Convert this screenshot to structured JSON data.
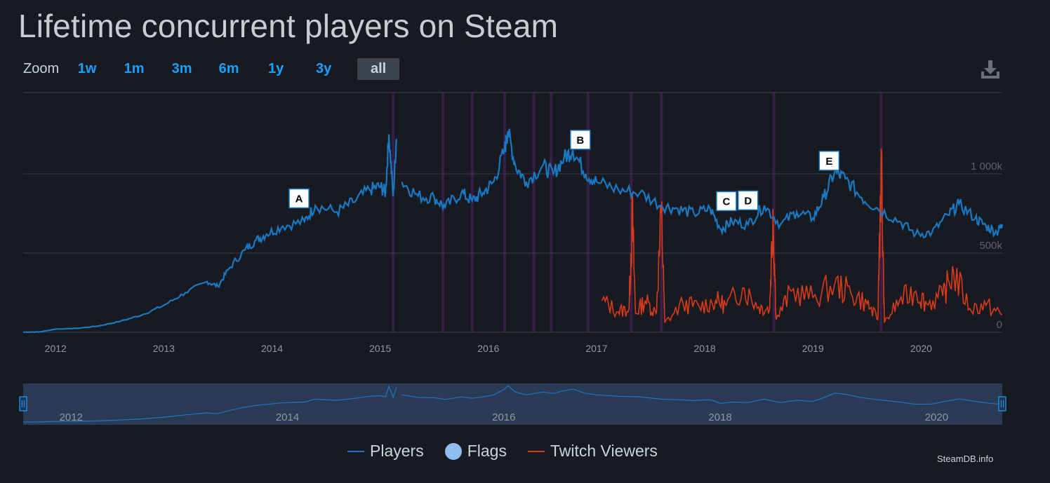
{
  "title": "Lifetime concurrent players on Steam",
  "zoom": {
    "label": "Zoom",
    "buttons": [
      "1w",
      "1m",
      "3m",
      "6m",
      "1y",
      "3y",
      "all"
    ],
    "active": "all"
  },
  "credit": "SteamDB.info",
  "legend": {
    "players": "Players",
    "flags": "Flags",
    "twitch": "Twitch Viewers"
  },
  "icons": {
    "download": "download-icon"
  },
  "colors": {
    "players": "#1a78c2",
    "twitch": "#d93a19",
    "flag_dot": "#8ebfef",
    "navigator_fill": "#2b3a55",
    "grid": "#3a3f4a",
    "event_band": "#3a1f4a"
  },
  "chart_data": {
    "type": "line",
    "xlim": [
      2011.7,
      2020.75
    ],
    "ylim": [
      0,
      1000000
    ],
    "y_ticks": [
      {
        "value": 0,
        "label": "0"
      },
      {
        "value": 500000,
        "label": "500k"
      },
      {
        "value": 1000000,
        "label": "1 000k"
      }
    ],
    "x_ticks": [
      "2012",
      "2013",
      "2014",
      "2015",
      "2016",
      "2017",
      "2018",
      "2019",
      "2020"
    ],
    "navigator_ticks": [
      "2012",
      "2014",
      "2016",
      "2018",
      "2020"
    ],
    "grid": true,
    "legend_position": "bottom-center",
    "series": [
      {
        "name": "Players",
        "points": [
          [
            2011.7,
            1000
          ],
          [
            2011.85,
            2000
          ],
          [
            2012.0,
            20000
          ],
          [
            2012.2,
            25000
          ],
          [
            2012.4,
            40000
          ],
          [
            2012.6,
            70000
          ],
          [
            2012.8,
            110000
          ],
          [
            2013.0,
            170000
          ],
          [
            2013.2,
            250000
          ],
          [
            2013.4,
            320000
          ],
          [
            2013.5,
            290000
          ],
          [
            2013.6,
            400000
          ],
          [
            2013.75,
            520000
          ],
          [
            2013.85,
            580000
          ],
          [
            2013.95,
            620000
          ],
          [
            2014.1,
            670000
          ],
          [
            2014.3,
            700000
          ],
          [
            2014.4,
            800000
          ],
          [
            2014.6,
            760000
          ],
          [
            2014.75,
            820000
          ],
          [
            2014.9,
            900000
          ],
          [
            2015.0,
            920000
          ],
          [
            2015.05,
            880000
          ],
          [
            2015.08,
            1250000
          ],
          [
            2015.12,
            860000
          ],
          [
            2015.15,
            1220000
          ],
          [
            null,
            null
          ],
          [
            2015.2,
            950000
          ],
          [
            2015.35,
            860000
          ],
          [
            2015.5,
            850000
          ],
          [
            2015.6,
            790000
          ],
          [
            2015.75,
            880000
          ],
          [
            2015.85,
            830000
          ],
          [
            2015.95,
            880000
          ],
          [
            2016.05,
            950000
          ],
          [
            2016.15,
            1150000
          ],
          [
            2016.18,
            1270000
          ],
          [
            2016.25,
            1050000
          ],
          [
            2016.35,
            950000
          ],
          [
            2016.5,
            1050000
          ],
          [
            2016.6,
            1000000
          ],
          [
            2016.7,
            1100000
          ],
          [
            2016.78,
            1150000
          ],
          [
            2016.9,
            1000000
          ],
          [
            2017.0,
            950000
          ],
          [
            2017.2,
            900000
          ],
          [
            2017.4,
            880000
          ],
          [
            2017.6,
            800000
          ],
          [
            2017.75,
            780000
          ],
          [
            2017.9,
            750000
          ],
          [
            2018.05,
            780000
          ],
          [
            2018.15,
            650000
          ],
          [
            2018.25,
            700000
          ],
          [
            2018.4,
            680000
          ],
          [
            2018.55,
            800000
          ],
          [
            2018.7,
            680000
          ],
          [
            2018.85,
            760000
          ],
          [
            2019.0,
            720000
          ],
          [
            2019.1,
            850000
          ],
          [
            2019.2,
            1010000
          ],
          [
            2019.3,
            970000
          ],
          [
            2019.45,
            850000
          ],
          [
            2019.6,
            780000
          ],
          [
            2019.8,
            700000
          ],
          [
            2019.95,
            620000
          ],
          [
            2020.1,
            630000
          ],
          [
            2020.25,
            740000
          ],
          [
            2020.35,
            810000
          ],
          [
            2020.5,
            720000
          ],
          [
            2020.6,
            670000
          ],
          [
            2020.7,
            630000
          ],
          [
            2020.75,
            680000
          ]
        ]
      },
      {
        "name": "Twitch Viewers",
        "points": [
          [
            2017.05,
            200000
          ],
          [
            2017.2,
            130000
          ],
          [
            2017.3,
            150000
          ],
          [
            2017.33,
            740000
          ],
          [
            2017.36,
            120000
          ],
          [
            2017.45,
            200000
          ],
          [
            2017.55,
            120000
          ],
          [
            2017.6,
            750000
          ],
          [
            2017.63,
            60000
          ],
          [
            2017.8,
            180000
          ],
          [
            2017.95,
            160000
          ],
          [
            2018.1,
            200000
          ],
          [
            2018.2,
            170000
          ],
          [
            2018.35,
            280000
          ],
          [
            2018.5,
            160000
          ],
          [
            2018.6,
            150000
          ],
          [
            2018.63,
            780000
          ],
          [
            2018.66,
            80000
          ],
          [
            2018.8,
            260000
          ],
          [
            2019.0,
            220000
          ],
          [
            2019.2,
            300000
          ],
          [
            2019.35,
            250000
          ],
          [
            2019.5,
            180000
          ],
          [
            2019.6,
            80000
          ],
          [
            2019.63,
            1100000
          ],
          [
            2019.66,
            60000
          ],
          [
            2019.8,
            200000
          ],
          [
            2019.95,
            260000
          ],
          [
            2020.05,
            180000
          ],
          [
            2020.2,
            230000
          ],
          [
            2020.3,
            380000
          ],
          [
            2020.45,
            150000
          ],
          [
            2020.6,
            170000
          ],
          [
            2020.75,
            110000
          ]
        ]
      }
    ],
    "event_bands": [
      2015.12,
      2015.58,
      2015.85,
      2016.15,
      2016.42,
      2016.58,
      2016.92,
      2017.32,
      2017.6,
      2018.64,
      2019.63
    ],
    "flags": [
      {
        "label": "A",
        "x": 2014.25
      },
      {
        "label": "B",
        "x": 2016.85
      },
      {
        "label": "C",
        "x": 2018.2
      },
      {
        "label": "D",
        "x": 2018.4
      },
      {
        "label": "E",
        "x": 2019.15
      }
    ]
  }
}
